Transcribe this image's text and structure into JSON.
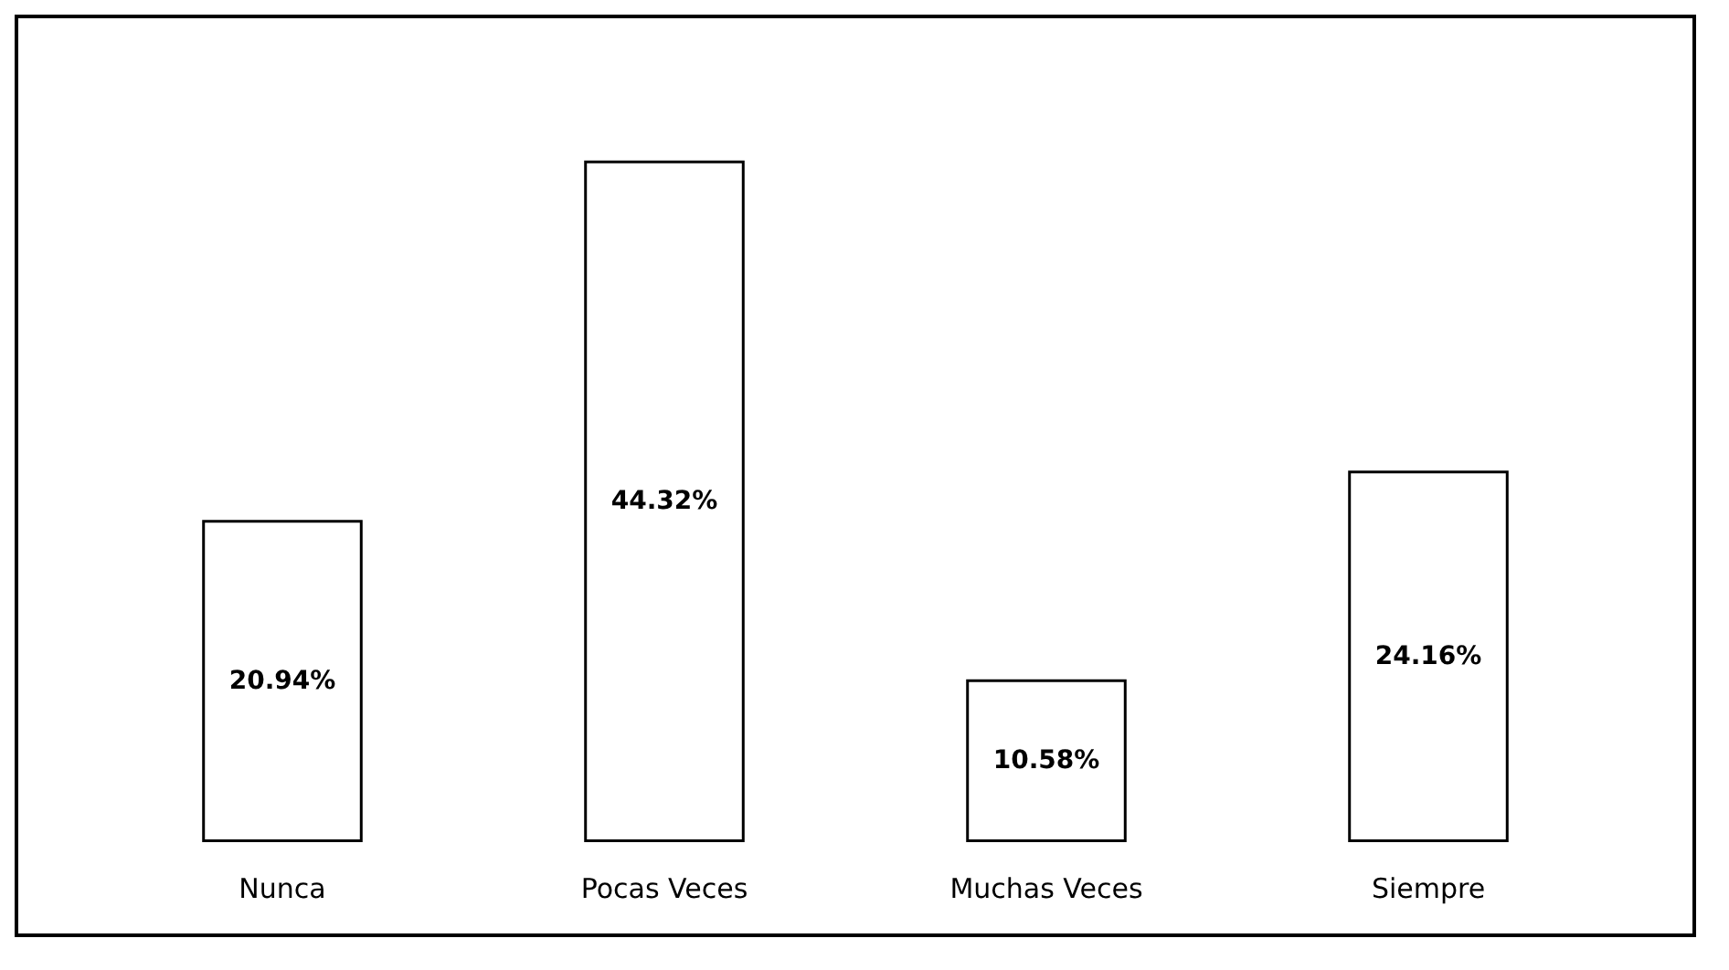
{
  "chart_data": {
    "type": "bar",
    "categories": [
      "Nunca",
      "Pocas Veces",
      "Muchas Veces",
      "Siempre"
    ],
    "values": [
      20.94,
      44.32,
      10.58,
      24.16
    ],
    "value_labels": [
      "20.94%",
      "44.32%",
      "10.58%",
      "24.16%"
    ],
    "color": "#ffffff",
    "grid": false
  }
}
